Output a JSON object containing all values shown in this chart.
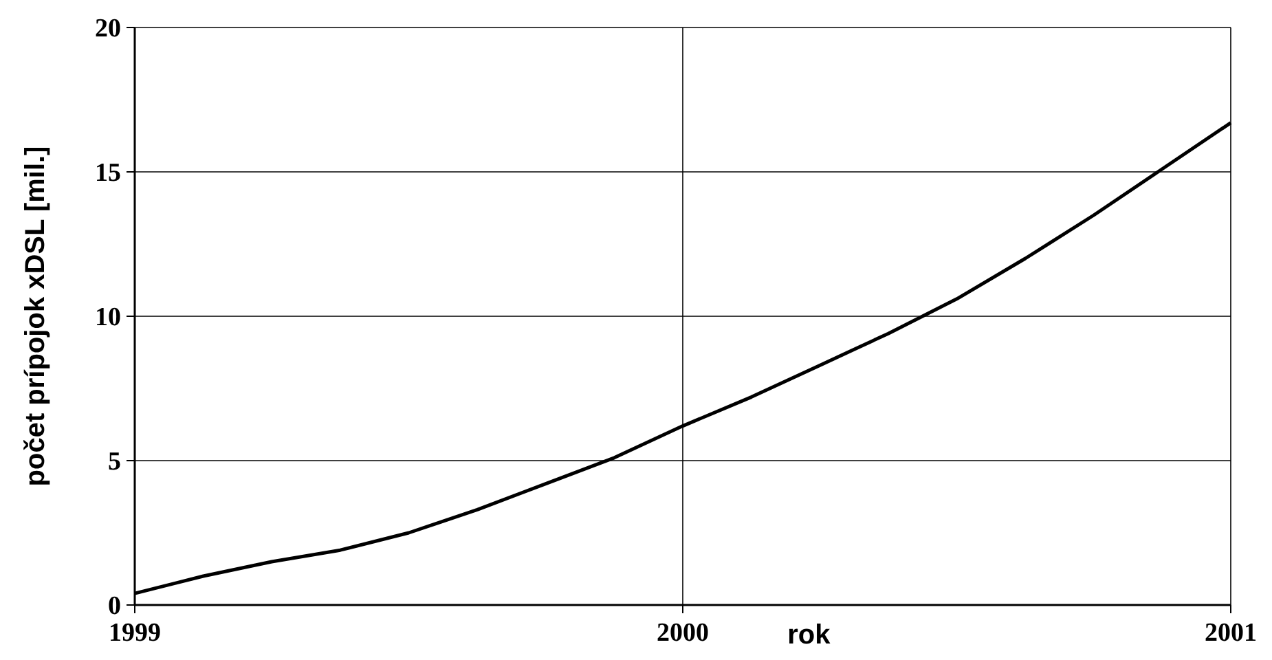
{
  "chart_data": {
    "type": "line",
    "xlabel": "rok",
    "ylabel": "počet prípojok xDSL [mil.]",
    "x": [
      1999,
      1999.125,
      1999.25,
      1999.375,
      1999.5,
      1999.625,
      1999.75,
      1999.875,
      2000,
      2000.125,
      2000.25,
      2000.375,
      2000.5,
      2000.625,
      2000.75,
      2000.875,
      2001
    ],
    "series": [
      {
        "color": "#000000",
        "values": [
          0.4,
          1.0,
          1.5,
          1.9,
          2.5,
          3.3,
          4.2,
          5.1,
          6.2,
          7.2,
          8.3,
          9.4,
          10.6,
          12.0,
          13.5,
          15.1,
          16.7
        ]
      }
    ],
    "xlim": [
      1999,
      2001
    ],
    "xticks": [
      1999,
      2000,
      2001
    ],
    "ylim": [
      0,
      20
    ],
    "yticks": [
      0,
      5,
      10,
      15,
      20
    ],
    "grid": true,
    "marker": "none",
    "line_style": "solid"
  }
}
